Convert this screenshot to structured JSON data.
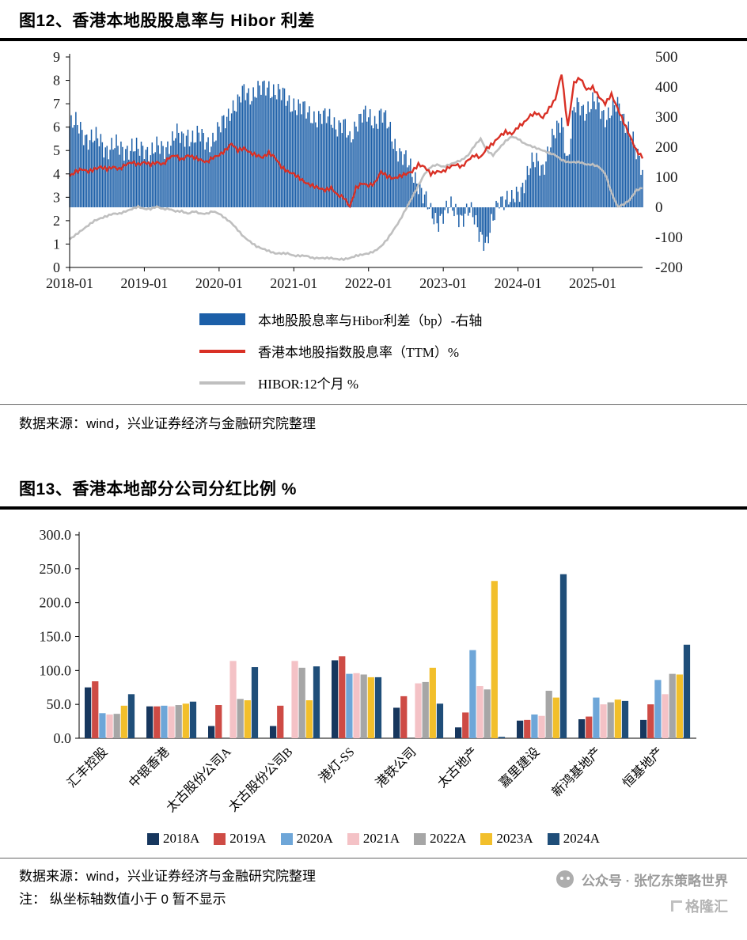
{
  "figure12": {
    "title": "图12、香港本地股股息率与 Hibor 利差",
    "source": "数据来源：wind，兴业证券经济与金融研究院整理"
  },
  "figure13": {
    "title": "图13、香港本地部分公司分红比例  %",
    "source": "数据来源：wind，兴业证券经济与金融研究院整理",
    "note": "注：  纵坐标轴数值小于 0 暂不显示"
  },
  "footer": {
    "watermark": "公众号 · 张忆东策略世界",
    "logo_text": "格隆汇"
  },
  "chart_data": [
    {
      "type": "bar",
      "title": "香港本地股股息率与 Hibor 利差",
      "x_start": "2018-01",
      "x_freq": "monthly",
      "x_ticks": [
        "2018-01",
        "2019-01",
        "2020-01",
        "2021-01",
        "2022-01",
        "2023-01",
        "2024-01",
        "2025-01"
      ],
      "left_axis": {
        "min": 0,
        "max": 9,
        "ticks": [
          0,
          1,
          2,
          3,
          4,
          5,
          6,
          7,
          8,
          9
        ]
      },
      "right_axis": {
        "min": -200,
        "max": 500,
        "ticks": [
          500,
          400,
          300,
          200,
          100,
          0,
          -100,
          -200
        ]
      },
      "grid": false,
      "legend_position": "bottom",
      "series": [
        {
          "name": "本地股股息率与Hibor利差（bp）-右轴",
          "type": "bar",
          "axis": "right",
          "color": "#1C5FA8",
          "values": [
            270,
            270,
            260,
            230,
            220,
            220,
            200,
            200,
            190,
            200,
            200,
            180,
            200,
            190,
            190,
            190,
            220,
            240,
            220,
            250,
            230,
            230,
            220,
            230,
            250,
            290,
            340,
            340,
            380,
            380,
            390,
            385,
            400,
            395,
            370,
            350,
            350,
            330,
            310,
            310,
            300,
            290,
            300,
            275,
            265,
            220,
            290,
            305,
            290,
            290,
            320,
            270,
            220,
            190,
            150,
            110,
            90,
            30,
            -30,
            -40,
            -20,
            -10,
            -10,
            -30,
            -20,
            -40,
            -80,
            -130,
            -50,
            40,
            30,
            10,
            50,
            90,
            130,
            150,
            140,
            190,
            240,
            300,
            150,
            320,
            340,
            330,
            340,
            330,
            310,
            320,
            330,
            300,
            260,
            170,
            120
          ]
        },
        {
          "name": "香港本地股指数股息率（TTM）%",
          "type": "line",
          "axis": "left",
          "color": "#D93025",
          "values": [
            3.9,
            4.1,
            4.2,
            4.1,
            4.2,
            4.3,
            4.2,
            4.3,
            4.2,
            4.4,
            4.5,
            4.4,
            4.5,
            4.4,
            4.5,
            4.4,
            4.7,
            4.8,
            4.6,
            4.8,
            4.7,
            4.6,
            4.5,
            4.7,
            4.8,
            5.0,
            5.3,
            5.0,
            5.1,
            4.9,
            4.8,
            4.7,
            4.9,
            4.7,
            4.3,
            4.1,
            4.0,
            3.8,
            3.6,
            3.5,
            3.4,
            3.3,
            3.4,
            3.1,
            3.0,
            2.6,
            3.4,
            3.6,
            3.5,
            3.6,
            4.1,
            3.9,
            3.8,
            3.9,
            4.0,
            4.1,
            4.4,
            4.3,
            4.0,
            4.1,
            4.1,
            4.3,
            4.4,
            4.3,
            4.6,
            4.8,
            4.7,
            5.1,
            5.3,
            5.6,
            5.8,
            5.7,
            6.0,
            6.2,
            6.5,
            6.6,
            6.4,
            6.8,
            7.2,
            8.3,
            6.0,
            7.9,
            8.1,
            7.6,
            7.7,
            7.3,
            7.0,
            7.4,
            6.8,
            6.2,
            5.6,
            5.0,
            4.7
          ]
        },
        {
          "name": "HIBOR:12个月 %",
          "type": "line",
          "axis": "left",
          "color": "#BFBFBF",
          "values": [
            1.2,
            1.4,
            1.6,
            1.8,
            2.0,
            2.1,
            2.2,
            2.3,
            2.3,
            2.4,
            2.5,
            2.6,
            2.5,
            2.5,
            2.6,
            2.5,
            2.5,
            2.4,
            2.4,
            2.3,
            2.4,
            2.3,
            2.3,
            2.4,
            2.3,
            2.1,
            1.9,
            1.6,
            1.3,
            1.1,
            0.9,
            0.8,
            0.7,
            0.6,
            0.6,
            0.6,
            0.5,
            0.5,
            0.5,
            0.4,
            0.4,
            0.4,
            0.4,
            0.35,
            0.35,
            0.4,
            0.5,
            0.55,
            0.6,
            0.7,
            0.9,
            1.2,
            1.6,
            2.0,
            2.5,
            3.0,
            3.5,
            4.0,
            4.3,
            4.4,
            4.3,
            4.4,
            4.5,
            4.6,
            4.8,
            5.2,
            5.5,
            5.0,
            4.8,
            5.1,
            5.4,
            5.6,
            5.5,
            5.3,
            5.2,
            5.1,
            5.0,
            4.9,
            4.8,
            4.6,
            4.5,
            4.5,
            4.5,
            4.4,
            4.4,
            4.3,
            4.0,
            3.2,
            2.6,
            2.7,
            2.9,
            3.3,
            3.4
          ]
        }
      ]
    },
    {
      "type": "bar",
      "title": "香港本地部分公司分红比例 %",
      "grid": false,
      "legend_position": "bottom",
      "ylim": [
        0,
        300
      ],
      "y_ticks": [
        0,
        50,
        100,
        150,
        200,
        250,
        300
      ],
      "y_tick_labels": [
        "0.0",
        "50.0",
        "100.0",
        "150.0",
        "200.0",
        "250.0",
        "300.0"
      ],
      "categories": [
        "汇丰控股",
        "中银香港",
        "太古股份公司A",
        "太古股份公司B",
        "港灯-SS",
        "港铁公司",
        "太古地产",
        "嘉里建设",
        "新鸿基地产",
        "恒基地产"
      ],
      "series": [
        {
          "name": "2018A",
          "color": "#17375E",
          "values": [
            75,
            47,
            18,
            18,
            115,
            45,
            16,
            26,
            28,
            27
          ]
        },
        {
          "name": "2019A",
          "color": "#CE4B45",
          "values": [
            84,
            47,
            49,
            48,
            121,
            62,
            38,
            27,
            32,
            50
          ]
        },
        {
          "name": "2020A",
          "color": "#6EA6D8",
          "values": [
            37,
            48,
            null,
            null,
            95,
            null,
            130,
            35,
            60,
            86
          ]
        },
        {
          "name": "2021A",
          "color": "#F4C2C6",
          "values": [
            35,
            47,
            114,
            114,
            96,
            81,
            77,
            33,
            50,
            65
          ]
        },
        {
          "name": "2022A",
          "color": "#A6A6A6",
          "values": [
            36,
            49,
            58,
            104,
            94,
            83,
            72,
            70,
            53,
            95
          ]
        },
        {
          "name": "2023A",
          "color": "#F2BF2B",
          "values": [
            48,
            51,
            56,
            56,
            90,
            104,
            232,
            60,
            57,
            94
          ]
        },
        {
          "name": "2024A",
          "color": "#1F4E79",
          "values": [
            65,
            54,
            105,
            106,
            90,
            51,
            2,
            242,
            55,
            138
          ]
        }
      ]
    }
  ]
}
